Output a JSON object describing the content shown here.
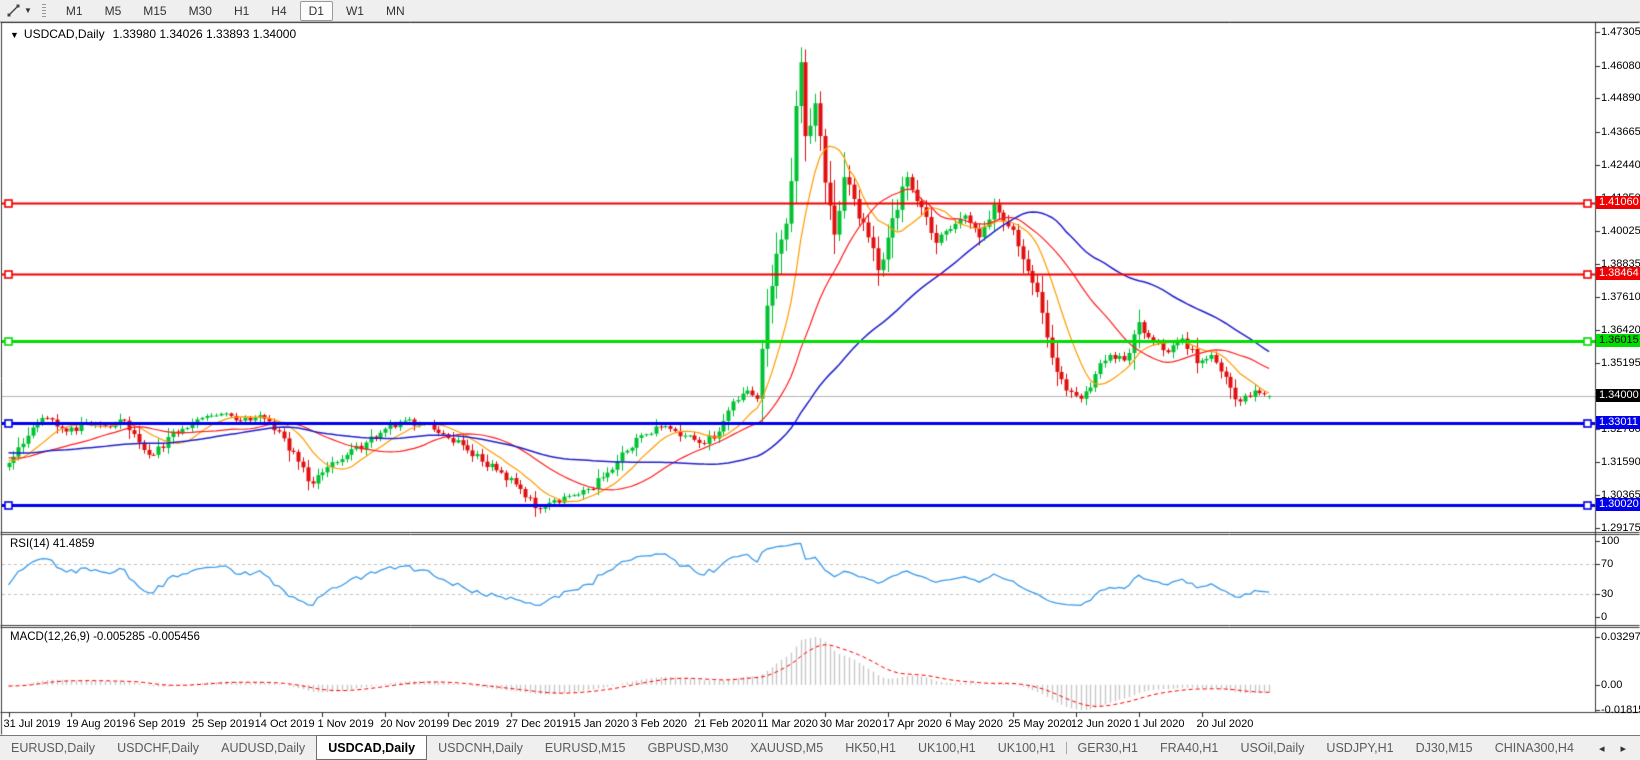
{
  "toolbar": {
    "tool_dropdown": "▼",
    "timeframes": [
      "M1",
      "M5",
      "M15",
      "M30",
      "H1",
      "H4",
      "D1",
      "W1",
      "MN"
    ],
    "active_timeframe": "D1"
  },
  "chart": {
    "collapse_icon": "▼",
    "title_symbol": "USDCAD,Daily",
    "ohlc_text": "1.33980 1.34026 1.33893 1.34000",
    "price_axis_ticks": [
      "1.47305",
      "1.46080",
      "1.44890",
      "1.43665",
      "1.42440",
      "1.41250",
      "1.40025",
      "1.38835",
      "1.37610",
      "1.36420",
      "1.35195",
      "1.33970",
      "1.32780",
      "1.31590",
      "1.30365",
      "1.29175"
    ],
    "hlines": [
      {
        "label": "1.41060",
        "value": 1.4106,
        "color": "#f00000",
        "width": 2,
        "text_color": "#ffffff"
      },
      {
        "label": "1.38464",
        "value": 1.38464,
        "color": "#f00000",
        "width": 2,
        "text_color": "#ffffff"
      },
      {
        "label": "1.36015",
        "value": 1.36015,
        "color": "#00dd00",
        "width": 3,
        "text_color": "#000000"
      },
      {
        "label": "1.33011",
        "value": 1.33011,
        "color": "#0000ee",
        "width": 3,
        "text_color": "#ffffff"
      },
      {
        "label": "1.30020",
        "value": 1.3002,
        "color": "#0000ee",
        "width": 3,
        "text_color": "#ffffff"
      }
    ],
    "current_price": {
      "label": "1.34000",
      "value": 1.34,
      "line_color": "#b4b4b4",
      "box_color": "#000000",
      "text_color": "#ffffff"
    },
    "date_labels": [
      "31 Jul 2019",
      "19 Aug 2019",
      "6 Sep 2019",
      "25 Sep 2019",
      "14 Oct 2019",
      "1 Nov 2019",
      "20 Nov 2019",
      "9 Dec 2019",
      "27 Dec 2019",
      "15 Jan 2020",
      "3 Feb 2020",
      "21 Feb 2020",
      "11 Mar 2020",
      "30 Mar 2020",
      "17 Apr 2020",
      "6 May 2020",
      "25 May 2020",
      "12 Jun 2020",
      "1 Jul 2020",
      "20 Jul 2020"
    ]
  },
  "rsi": {
    "label": "RSI(14) 41.4859",
    "ticks": [
      "100",
      "70",
      "30",
      "0"
    ],
    "tick_values": [
      100,
      70,
      30,
      0
    ],
    "levels": [
      70,
      30
    ],
    "line_color": "#3d9be9",
    "level_color": "#c2c2c2"
  },
  "macd": {
    "label": "MACD(12,26,9) -0.005285 -0.005456",
    "tick_max": "0.032972",
    "tick_zero": "0.00",
    "tick_min": "-0.018154",
    "histogram_color": "#c8c8c8",
    "signal_color": "#ff0000"
  },
  "tabs": {
    "items": [
      "EURUSD,Daily",
      "USDCHF,Daily",
      "AUDUSD,Daily",
      "USDCAD,Daily",
      "USDCNH,Daily",
      "EURUSD,M15",
      "GBPUSD,M30",
      "XAUUSD,M5",
      "HK50,H1",
      "UK100,H1",
      "UK100,H1",
      "GER30,H1",
      "FRA40,H1",
      "USOil,Daily",
      "USDJPY,H1",
      "DJ30,M15",
      "CHINA300,H4"
    ],
    "active_index": 3,
    "scroll_left": "◂",
    "scroll_right": "▸"
  },
  "chart_data": {
    "type": "candlestick",
    "symbol": "USDCAD",
    "period": "Daily",
    "bar_count": 262,
    "ylim": [
      1.2902,
      1.4767
    ],
    "close_anchors": [
      [
        0,
        1.3155
      ],
      [
        4,
        1.3255
      ],
      [
        7,
        1.332
      ],
      [
        12,
        1.327
      ],
      [
        16,
        1.3305
      ],
      [
        20,
        1.329
      ],
      [
        24,
        1.331
      ],
      [
        27,
        1.323
      ],
      [
        30,
        1.3185
      ],
      [
        33,
        1.325
      ],
      [
        36,
        1.328
      ],
      [
        40,
        1.332
      ],
      [
        44,
        1.3335
      ],
      [
        48,
        1.331
      ],
      [
        52,
        1.333
      ],
      [
        56,
        1.327
      ],
      [
        60,
        1.316
      ],
      [
        63,
        1.308
      ],
      [
        66,
        1.314
      ],
      [
        70,
        1.3185
      ],
      [
        74,
        1.323
      ],
      [
        78,
        1.328
      ],
      [
        82,
        1.331
      ],
      [
        86,
        1.33
      ],
      [
        90,
        1.326
      ],
      [
        94,
        1.322
      ],
      [
        98,
        1.316
      ],
      [
        102,
        1.312
      ],
      [
        106,
        1.306
      ],
      [
        109,
        1.299
      ],
      [
        112,
        1.301
      ],
      [
        116,
        1.3035
      ],
      [
        120,
        1.306
      ],
      [
        124,
        1.312
      ],
      [
        128,
        1.32
      ],
      [
        132,
        1.326
      ],
      [
        136,
        1.329
      ],
      [
        140,
        1.3255
      ],
      [
        144,
        1.3225
      ],
      [
        147,
        1.327
      ],
      [
        150,
        1.338
      ],
      [
        153,
        1.342
      ],
      [
        155,
        1.339
      ],
      [
        157,
        1.373
      ],
      [
        159,
        1.392
      ],
      [
        161,
        1.403
      ],
      [
        163,
        1.446
      ],
      [
        164,
        1.462
      ],
      [
        165,
        1.435
      ],
      [
        167,
        1.447
      ],
      [
        169,
        1.418
      ],
      [
        171,
        1.399
      ],
      [
        173,
        1.42
      ],
      [
        175,
        1.412
      ],
      [
        178,
        1.398
      ],
      [
        180,
        1.386
      ],
      [
        183,
        1.405
      ],
      [
        186,
        1.42
      ],
      [
        189,
        1.409
      ],
      [
        192,
        1.396
      ],
      [
        195,
        1.401
      ],
      [
        198,
        1.406
      ],
      [
        201,
        1.398
      ],
      [
        204,
        1.41
      ],
      [
        207,
        1.402
      ],
      [
        210,
        1.39
      ],
      [
        213,
        1.378
      ],
      [
        216,
        1.354
      ],
      [
        219,
        1.342
      ],
      [
        222,
        1.339
      ],
      [
        225,
        1.348
      ],
      [
        228,
        1.355
      ],
      [
        231,
        1.353
      ],
      [
        234,
        1.367
      ],
      [
        237,
        1.36
      ],
      [
        240,
        1.356
      ],
      [
        243,
        1.361
      ],
      [
        246,
        1.352
      ],
      [
        249,
        1.355
      ],
      [
        252,
        1.347
      ],
      [
        255,
        1.338
      ],
      [
        258,
        1.342
      ],
      [
        261,
        1.34
      ]
    ],
    "last_bar_ohlc": [
      1.3398,
      1.34026,
      1.33893,
      1.34
    ],
    "colors": {
      "bull": "#00c232",
      "bear": "#e01010"
    },
    "moving_averages": [
      {
        "period": 10,
        "color": "#ff9c00"
      },
      {
        "period": 25,
        "color": "#ff2020"
      },
      {
        "period": 55,
        "color": "#2121cc"
      }
    ],
    "rsi_period": 14,
    "macd_params": [
      12,
      26,
      9
    ]
  }
}
